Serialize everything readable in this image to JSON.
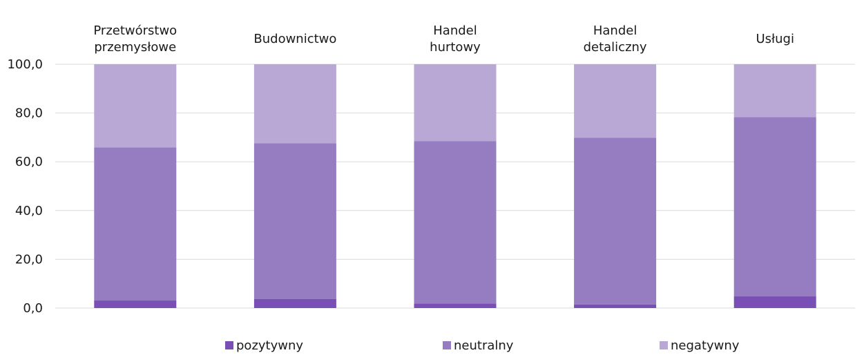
{
  "chart_data": {
    "type": "bar",
    "stacked": true,
    "categories": [
      "Przetwórstwo przemysłowe",
      "Budownictwo",
      "Handel hurtowy",
      "Handel detaliczny",
      "Usługi"
    ],
    "category_label_lines": [
      [
        "Przetwórstwo",
        "przemysłowe"
      ],
      [
        "Budownictwo"
      ],
      [
        "Handel",
        "hurtowy"
      ],
      [
        "Handel",
        "detaliczny"
      ],
      [
        "Usługi"
      ]
    ],
    "series": [
      {
        "name": "pozytywny",
        "color": "#7a4fb5",
        "values": [
          3.1,
          3.7,
          1.9,
          1.5,
          4.8
        ]
      },
      {
        "name": "neutralny",
        "color": "#967dc2",
        "values": [
          62.8,
          63.9,
          66.6,
          68.4,
          73.5
        ]
      },
      {
        "name": "negatywny",
        "color": "#b9a7d6",
        "values": [
          34.1,
          32.4,
          31.5,
          30.1,
          21.7
        ]
      }
    ],
    "ylim": [
      0,
      100
    ],
    "yticks": [
      0,
      20,
      40,
      60,
      80,
      100
    ],
    "ytick_labels": [
      "0,0",
      "20,0",
      "40,0",
      "60,0",
      "80,0",
      "100,0"
    ],
    "category_axis_position": "top",
    "legend_position": "bottom",
    "grid": true,
    "grid_color": "#d9d9d9"
  }
}
